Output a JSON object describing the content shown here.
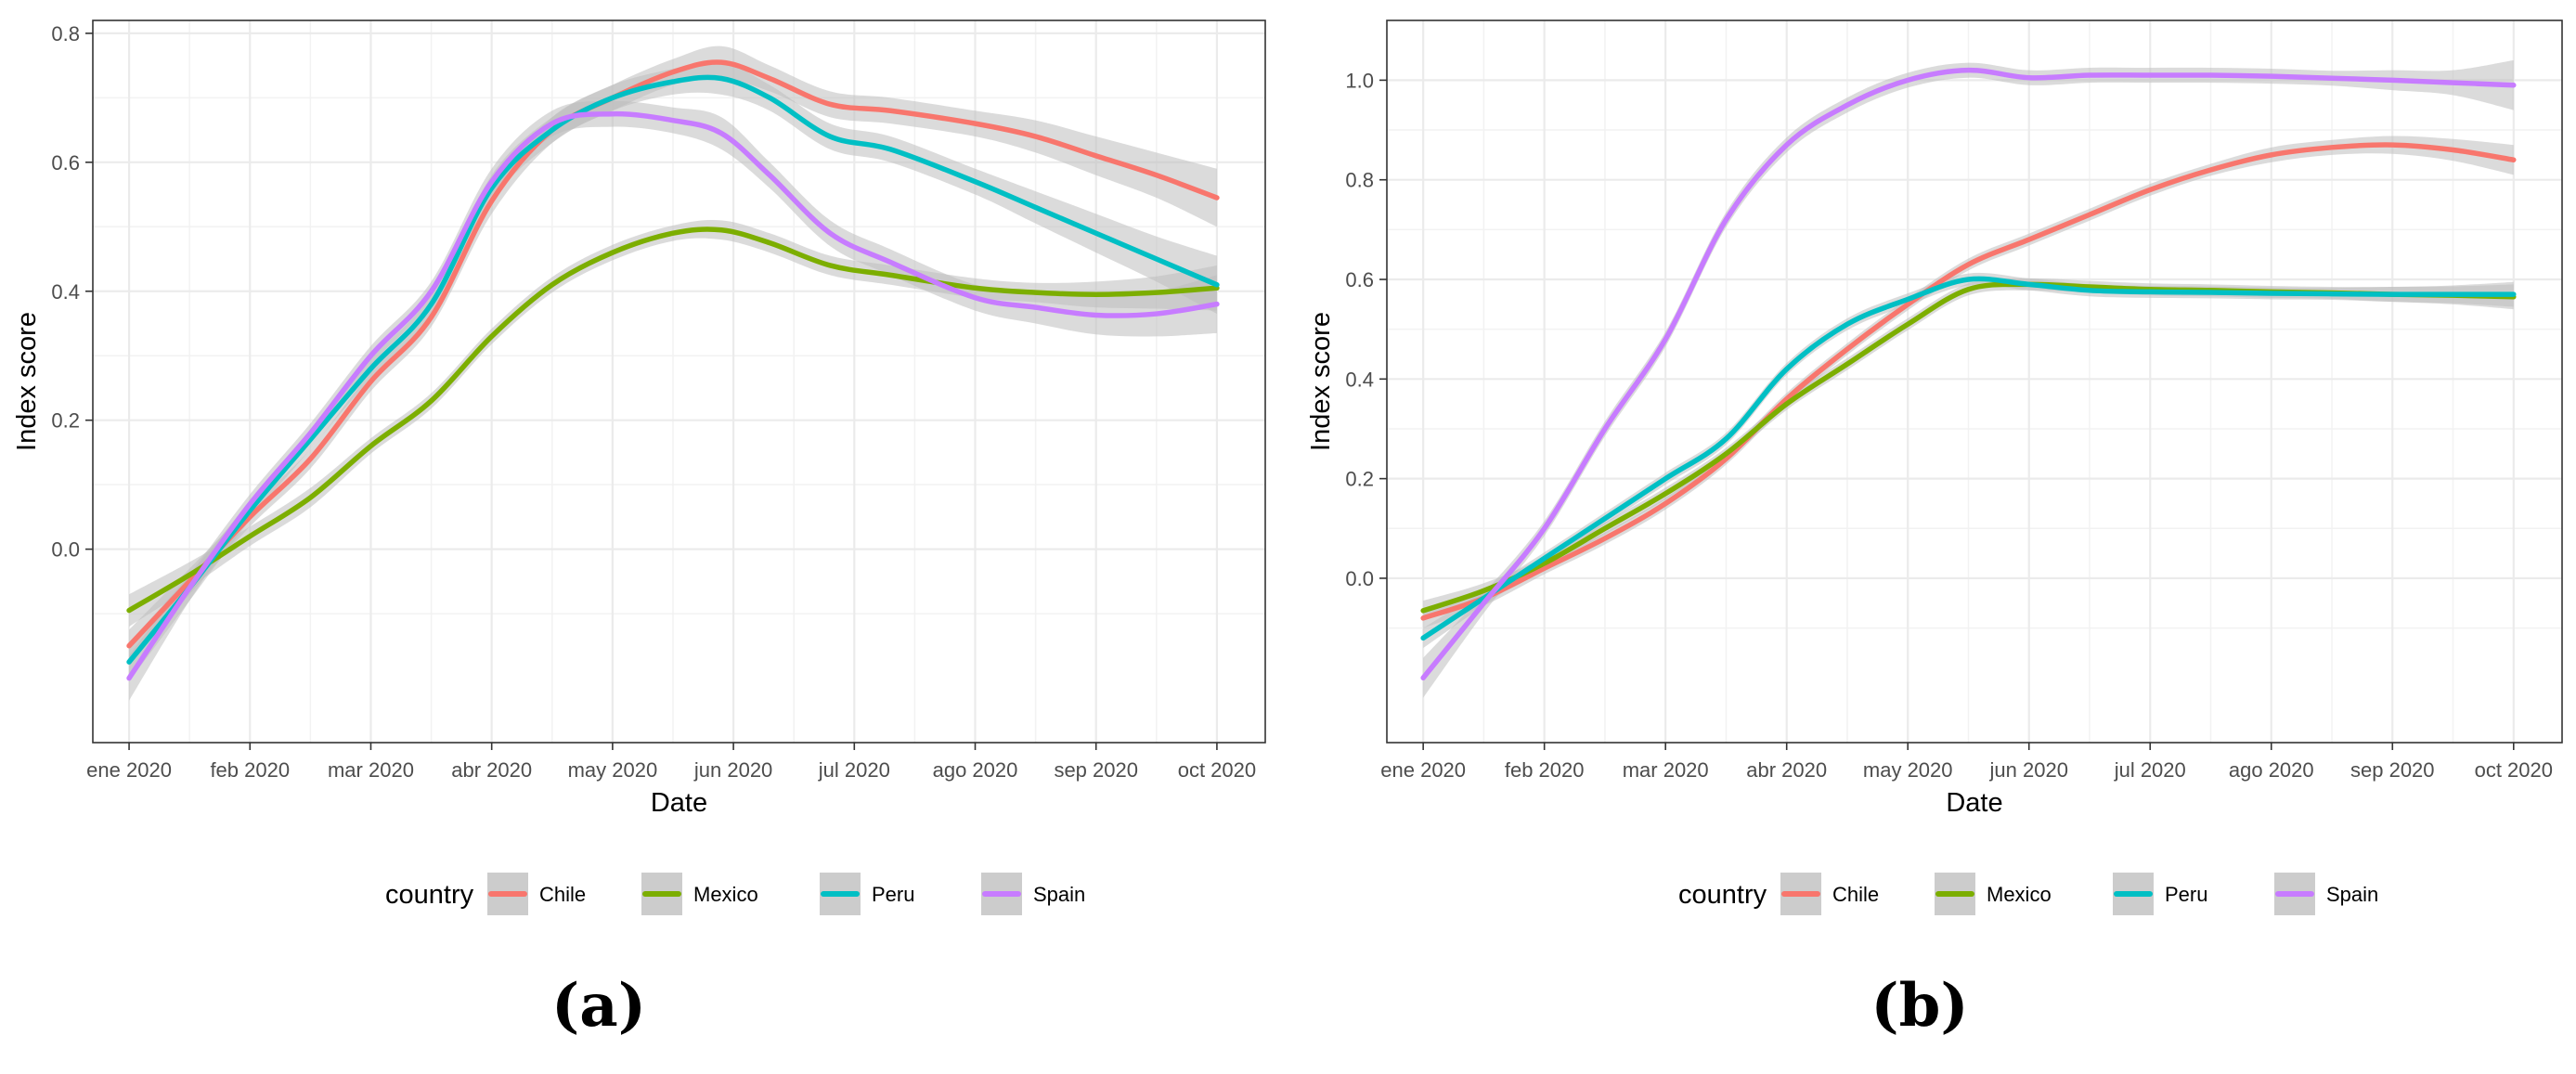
{
  "colors": {
    "Chile": "#F8766D",
    "Mexico": "#7CAE00",
    "Peru": "#00BFC4",
    "Spain": "#C77CFF",
    "ribbon": "#bdbdbd"
  },
  "chart_data": [
    {
      "type": "line",
      "panel_label": "(a)",
      "xlabel": "Date",
      "ylabel": "Index score",
      "x_tick_labels": [
        "ene 2020",
        "feb 2020",
        "mar 2020",
        "abr 2020",
        "may 2020",
        "jun 2020",
        "jul 2020",
        "ago 2020",
        "sep 2020",
        "oct 2020"
      ],
      "y_ticks": [
        0.0,
        0.2,
        0.4,
        0.6,
        0.8
      ],
      "y_tick_labels": [
        "0.0",
        "0.2",
        "0.4",
        "0.6",
        "0.8"
      ],
      "xlim": [
        -0.3,
        9.4
      ],
      "ylim": [
        -0.3,
        0.82
      ],
      "legend": {
        "title": "country",
        "entries": [
          "Chile",
          "Mexico",
          "Peru",
          "Spain"
        ],
        "position": "bottom"
      },
      "series": [
        {
          "name": "Chile",
          "x": [
            0,
            0.5,
            1,
            1.5,
            2,
            2.5,
            3,
            3.5,
            4,
            4.5,
            4.9,
            5.3,
            5.8,
            6.3,
            7,
            7.5,
            8,
            8.5,
            9
          ],
          "values": [
            -0.15,
            -0.05,
            0.05,
            0.14,
            0.26,
            0.36,
            0.54,
            0.65,
            0.7,
            0.74,
            0.755,
            0.73,
            0.69,
            0.68,
            0.66,
            0.64,
            0.61,
            0.58,
            0.545
          ],
          "se": [
            0.025,
            0.02,
            0.015,
            0.015,
            0.015,
            0.015,
            0.02,
            0.02,
            0.02,
            0.02,
            0.025,
            0.02,
            0.02,
            0.02,
            0.02,
            0.025,
            0.03,
            0.035,
            0.045
          ]
        },
        {
          "name": "Mexico",
          "x": [
            0,
            0.5,
            1,
            1.5,
            2,
            2.5,
            3,
            3.5,
            4,
            4.5,
            4.9,
            5.3,
            5.8,
            6.3,
            7,
            7.5,
            8,
            8.5,
            9
          ],
          "values": [
            -0.095,
            -0.04,
            0.02,
            0.08,
            0.16,
            0.23,
            0.33,
            0.41,
            0.46,
            0.49,
            0.495,
            0.475,
            0.44,
            0.425,
            0.405,
            0.398,
            0.395,
            0.398,
            0.405
          ],
          "se": [
            0.025,
            0.02,
            0.015,
            0.015,
            0.012,
            0.012,
            0.012,
            0.012,
            0.012,
            0.012,
            0.015,
            0.015,
            0.015,
            0.015,
            0.015,
            0.015,
            0.02,
            0.025,
            0.035
          ]
        },
        {
          "name": "Peru",
          "x": [
            0,
            0.5,
            1,
            1.5,
            2,
            2.5,
            3,
            3.5,
            4,
            4.5,
            4.9,
            5.3,
            5.8,
            6.3,
            7,
            7.5,
            8,
            8.5,
            9
          ],
          "values": [
            -0.175,
            -0.06,
            0.06,
            0.17,
            0.28,
            0.38,
            0.56,
            0.65,
            0.7,
            0.725,
            0.73,
            0.7,
            0.64,
            0.62,
            0.57,
            0.53,
            0.49,
            0.45,
            0.41
          ],
          "se": [
            0.03,
            0.02,
            0.015,
            0.015,
            0.015,
            0.015,
            0.02,
            0.02,
            0.02,
            0.02,
            0.025,
            0.02,
            0.02,
            0.02,
            0.02,
            0.025,
            0.03,
            0.035,
            0.045
          ]
        },
        {
          "name": "Spain",
          "x": [
            0,
            0.5,
            1,
            1.5,
            2,
            2.5,
            3,
            3.5,
            4,
            4.5,
            4.9,
            5.3,
            5.8,
            6.3,
            7,
            7.5,
            8,
            8.5,
            9
          ],
          "values": [
            -0.2,
            -0.06,
            0.07,
            0.18,
            0.3,
            0.4,
            0.57,
            0.66,
            0.675,
            0.665,
            0.645,
            0.58,
            0.49,
            0.445,
            0.39,
            0.375,
            0.363,
            0.365,
            0.38
          ],
          "se": [
            0.035,
            0.02,
            0.015,
            0.015,
            0.015,
            0.015,
            0.02,
            0.02,
            0.02,
            0.02,
            0.025,
            0.02,
            0.02,
            0.02,
            0.02,
            0.025,
            0.03,
            0.035,
            0.045
          ]
        }
      ]
    },
    {
      "type": "line",
      "panel_label": "(b)",
      "xlabel": "Date",
      "ylabel": "Index score",
      "x_tick_labels": [
        "ene 2020",
        "feb 2020",
        "mar 2020",
        "abr 2020",
        "may 2020",
        "jun 2020",
        "jul 2020",
        "ago 2020",
        "sep 2020",
        "oct 2020"
      ],
      "y_ticks": [
        0.0,
        0.2,
        0.4,
        0.6,
        0.8,
        1.0
      ],
      "y_tick_labels": [
        "0.0",
        "0.2",
        "0.4",
        "0.6",
        "0.8",
        "1.0"
      ],
      "xlim": [
        -0.3,
        9.4
      ],
      "ylim": [
        -0.33,
        1.12
      ],
      "legend": {
        "title": "country",
        "entries": [
          "Chile",
          "Mexico",
          "Peru",
          "Spain"
        ],
        "position": "bottom"
      },
      "series": [
        {
          "name": "Chile",
          "x": [
            0,
            0.5,
            1,
            1.5,
            2,
            2.5,
            3,
            3.5,
            4,
            4.5,
            5,
            5.5,
            6,
            6.5,
            7,
            7.5,
            8,
            8.5,
            9
          ],
          "values": [
            -0.08,
            -0.04,
            0.02,
            0.08,
            0.15,
            0.24,
            0.36,
            0.46,
            0.55,
            0.63,
            0.68,
            0.73,
            0.78,
            0.82,
            0.85,
            0.865,
            0.87,
            0.86,
            0.84
          ],
          "se": [
            0.02,
            0.015,
            0.012,
            0.012,
            0.012,
            0.012,
            0.012,
            0.012,
            0.012,
            0.012,
            0.012,
            0.012,
            0.012,
            0.012,
            0.015,
            0.015,
            0.018,
            0.022,
            0.03
          ]
        },
        {
          "name": "Mexico",
          "x": [
            0,
            0.5,
            1,
            1.5,
            2,
            2.5,
            3,
            3.5,
            4,
            4.5,
            5,
            5.5,
            6,
            6.5,
            7,
            7.5,
            8,
            8.5,
            9
          ],
          "values": [
            -0.065,
            -0.025,
            0.03,
            0.1,
            0.17,
            0.25,
            0.35,
            0.43,
            0.51,
            0.58,
            0.59,
            0.585,
            0.58,
            0.578,
            0.575,
            0.573,
            0.57,
            0.568,
            0.565
          ],
          "se": [
            0.02,
            0.015,
            0.012,
            0.012,
            0.012,
            0.012,
            0.012,
            0.012,
            0.012,
            0.012,
            0.012,
            0.012,
            0.012,
            0.012,
            0.012,
            0.012,
            0.015,
            0.018,
            0.025
          ]
        },
        {
          "name": "Peru",
          "x": [
            0,
            0.5,
            1,
            1.5,
            2,
            2.5,
            3,
            3.5,
            4,
            4.5,
            5,
            5.5,
            6,
            6.5,
            7,
            7.5,
            8,
            8.5,
            9
          ],
          "values": [
            -0.12,
            -0.04,
            0.04,
            0.12,
            0.2,
            0.28,
            0.42,
            0.51,
            0.56,
            0.6,
            0.59,
            0.578,
            0.575,
            0.574,
            0.572,
            0.571,
            0.57,
            0.57,
            0.57
          ],
          "se": [
            0.02,
            0.015,
            0.012,
            0.012,
            0.012,
            0.012,
            0.012,
            0.012,
            0.012,
            0.012,
            0.012,
            0.012,
            0.012,
            0.012,
            0.012,
            0.012,
            0.015,
            0.018,
            0.025
          ]
        },
        {
          "name": "Spain",
          "x": [
            0,
            0.5,
            1,
            1.5,
            2,
            2.5,
            3,
            3.5,
            4,
            4.5,
            5,
            5.5,
            6,
            6.5,
            7,
            7.5,
            8,
            8.5,
            9
          ],
          "values": [
            -0.2,
            -0.05,
            0.1,
            0.3,
            0.48,
            0.72,
            0.87,
            0.95,
            1.0,
            1.02,
            1.005,
            1.01,
            1.01,
            1.01,
            1.008,
            1.004,
            1.0,
            0.995,
            0.99
          ],
          "se": [
            0.04,
            0.02,
            0.015,
            0.015,
            0.015,
            0.015,
            0.015,
            0.015,
            0.015,
            0.015,
            0.015,
            0.015,
            0.015,
            0.015,
            0.015,
            0.015,
            0.02,
            0.025,
            0.05
          ]
        }
      ]
    }
  ]
}
